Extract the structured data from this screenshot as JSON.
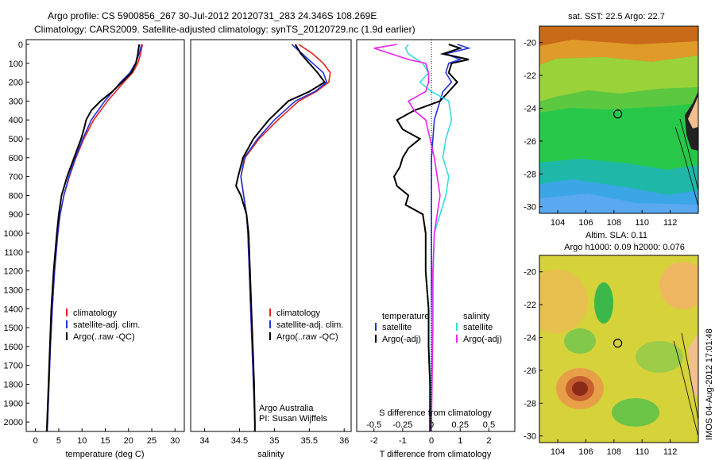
{
  "header": {
    "line1": "Argo profile: CS 5900856_267 30-Jul-2012 20120731_283 24.346S 108.269E",
    "line2": "Climatology: CARS2009. Satellite-adjusted climatology: synTS_20120729.nc (1.9d earlier)"
  },
  "side_stamp": "IMOS 04-Aug-2012 17:01:48",
  "colors": {
    "clim": "#e8221b",
    "sat": "#2233dd",
    "argo": "#000000",
    "sal_sat": "#33dddd",
    "sal_argo": "#ee22ee"
  },
  "chart_data": [
    {
      "type": "line",
      "id": "temperature",
      "xlabel": "temperature (deg C)",
      "xlim": [
        -2,
        32
      ],
      "ylim": [
        2050,
        0
      ],
      "xticks": [
        0,
        5,
        10,
        15,
        20,
        25,
        30
      ],
      "yticks": [
        0,
        100,
        200,
        300,
        400,
        500,
        600,
        700,
        800,
        900,
        1000,
        1100,
        1200,
        1300,
        1400,
        1500,
        1600,
        1700,
        1800,
        1900,
        2000
      ],
      "legend": [
        "climatology",
        "satellite-adj. clim.",
        "Argo(..raw -QC)"
      ],
      "series": [
        {
          "name": "climatology",
          "color": "clim",
          "depth": [
            0,
            50,
            100,
            150,
            200,
            300,
            400,
            500,
            600,
            700,
            800,
            900,
            1000,
            1200,
            1400,
            1600,
            1800,
            2000,
            2050
          ],
          "values": [
            23.0,
            22.6,
            22.0,
            20.9,
            19.0,
            15.5,
            12.5,
            10.4,
            8.7,
            7.3,
            6.1,
            5.3,
            4.8,
            4.1,
            3.6,
            3.2,
            2.9,
            2.6,
            2.5
          ]
        },
        {
          "name": "satellite-adj. clim.",
          "color": "sat",
          "depth": [
            0,
            50,
            100,
            150,
            200,
            300,
            400,
            500,
            600,
            700,
            800,
            900,
            1000,
            1200,
            1400,
            1600,
            1800,
            2000,
            2050
          ],
          "values": [
            22.8,
            22.3,
            21.5,
            20.3,
            18.3,
            14.9,
            12.0,
            10.2,
            8.6,
            7.2,
            6.1,
            5.3,
            4.8,
            4.1,
            3.6,
            3.2,
            2.9,
            2.6,
            2.5
          ]
        },
        {
          "name": "Argo(..raw -QC)",
          "color": "argo",
          "depth": [
            0,
            50,
            100,
            150,
            200,
            250,
            300,
            350,
            400,
            450,
            500,
            600,
            700,
            800,
            900,
            1000,
            1200,
            1400,
            1600,
            1800,
            2000,
            2050
          ],
          "values": [
            22.3,
            22.0,
            21.6,
            20.6,
            18.6,
            16.5,
            14.0,
            12.0,
            10.9,
            10.4,
            9.8,
            8.3,
            6.8,
            5.6,
            5.0,
            4.6,
            3.9,
            3.4,
            3.1,
            2.8,
            2.5,
            2.4
          ]
        }
      ]
    },
    {
      "type": "line",
      "id": "salinity",
      "xlabel": "salinity",
      "xlim": [
        33.8,
        36.1
      ],
      "ylim": [
        2050,
        0
      ],
      "xticks": [
        34,
        34.5,
        35,
        35.5,
        36
      ],
      "legend": [
        "climatology",
        "satellite-adj. clim.",
        "Argo(..raw -QC)"
      ],
      "annotation": [
        "Argo Australia",
        "PI: Susan Wijffels"
      ],
      "series": [
        {
          "name": "climatology",
          "color": "clim",
          "depth": [
            0,
            50,
            100,
            150,
            200,
            250,
            300,
            400,
            500,
            600,
            700,
            800,
            900,
            1000,
            1200,
            1400,
            1600,
            1800,
            2000,
            2050
          ],
          "values": [
            35.35,
            35.55,
            35.7,
            35.8,
            35.78,
            35.6,
            35.35,
            35.05,
            34.78,
            34.58,
            34.52,
            34.56,
            34.6,
            34.62,
            34.64,
            34.66,
            34.68,
            34.7,
            34.72,
            34.72
          ]
        },
        {
          "name": "satellite-adj. clim.",
          "color": "sat",
          "depth": [
            0,
            50,
            100,
            150,
            200,
            250,
            300,
            400,
            500,
            600,
            700,
            800,
            900,
            1000,
            1200,
            1400,
            1600,
            1800,
            2000,
            2050
          ],
          "values": [
            35.25,
            35.4,
            35.55,
            35.7,
            35.75,
            35.58,
            35.3,
            35.0,
            34.76,
            34.57,
            34.52,
            34.56,
            34.6,
            34.62,
            34.64,
            34.66,
            34.68,
            34.7,
            34.72,
            34.72
          ]
        },
        {
          "name": "Argo(..raw -QC)",
          "color": "argo",
          "depth": [
            0,
            50,
            100,
            150,
            200,
            250,
            300,
            400,
            500,
            600,
            700,
            750,
            800,
            900,
            1000,
            1200,
            1400,
            1600,
            1800,
            2000,
            2050
          ],
          "values": [
            35.3,
            35.38,
            35.5,
            35.62,
            35.72,
            35.5,
            35.2,
            34.92,
            34.7,
            34.55,
            34.48,
            34.45,
            34.52,
            34.6,
            34.63,
            34.65,
            34.67,
            34.69,
            34.71,
            34.72,
            34.72
          ]
        }
      ]
    },
    {
      "type": "line",
      "id": "difference",
      "xlabel": "T difference from climatology",
      "toplabel": "S difference from climatology",
      "xlim": [
        -2.6,
        2.9
      ],
      "ylim": [
        2050,
        0
      ],
      "xticks": [
        -2,
        -1,
        0,
        1,
        2
      ],
      "topticks": [
        "-0.5",
        "-0.25",
        "0",
        "0.25",
        "0.5"
      ],
      "topticks_pos": [
        -2,
        -1,
        0,
        1,
        2
      ],
      "legend_left": [
        "temperature",
        "satellite",
        "Argo(-adj)"
      ],
      "legend_right": [
        "salinity",
        "satellite",
        "Argo(-adj)"
      ],
      "series": [
        {
          "name": "temperature satellite",
          "color": "sat",
          "depth": [
            0,
            20,
            50,
            80,
            100,
            150,
            200,
            250,
            300,
            400,
            500,
            600,
            800,
            1000,
            1200,
            1500,
            2000,
            2050
          ],
          "values": [
            0.9,
            1.3,
            0.5,
            1.0,
            0.6,
            0.5,
            0.7,
            0.4,
            0.3,
            0.1,
            0.05,
            0.0,
            0.0,
            0.0,
            0.0,
            0.0,
            0.0,
            0.0
          ]
        },
        {
          "name": "temperature Argo(-adj)",
          "color": "argo",
          "depth": [
            0,
            20,
            50,
            80,
            100,
            150,
            200,
            250,
            300,
            350,
            400,
            450,
            500,
            550,
            600,
            650,
            700,
            750,
            800,
            850,
            900,
            1000,
            1100,
            1200,
            1300,
            1400,
            1600,
            1800,
            2000,
            2050
          ],
          "values": [
            0.6,
            1.0,
            0.4,
            1.3,
            0.7,
            0.6,
            0.9,
            0.6,
            0.3,
            -0.6,
            -1.2,
            -1.0,
            -0.4,
            -0.8,
            -1.0,
            -1.1,
            -1.3,
            -1.2,
            -0.8,
            -0.9,
            -0.3,
            -0.2,
            -0.2,
            -0.2,
            -0.15,
            -0.1,
            -0.1,
            -0.05,
            -0.05,
            -0.05
          ]
        },
        {
          "name": "salinity satellite",
          "color": "sal_sat",
          "depth": [
            0,
            20,
            50,
            100,
            150,
            200,
            250,
            300,
            400,
            500,
            600,
            700,
            800,
            1000,
            1500,
            2000,
            2050
          ],
          "values": [
            -0.8,
            -0.9,
            -0.8,
            -0.3,
            -0.1,
            -0.4,
            0.0,
            0.6,
            0.7,
            0.5,
            0.4,
            0.6,
            0.5,
            0.1,
            0.0,
            0.0,
            0.0
          ]
        },
        {
          "name": "salinity Argo(-adj)",
          "color": "sal_argo",
          "depth": [
            0,
            20,
            50,
            80,
            100,
            150,
            200,
            250,
            300,
            350,
            400,
            500,
            600,
            700,
            800,
            900,
            1000,
            1200,
            1500,
            2000,
            2050
          ],
          "values": [
            -1.2,
            -2.0,
            -1.4,
            -0.8,
            -0.2,
            -0.1,
            -0.1,
            -0.2,
            -0.8,
            -0.6,
            -0.2,
            -0.05,
            0.1,
            0.2,
            0.3,
            0.2,
            0.1,
            0.05,
            0.05,
            0.0,
            0.0
          ]
        }
      ]
    },
    {
      "type": "heatmap",
      "id": "sst_map",
      "title": "sat. SST: 22.5  Argo: 22.7",
      "xticks": [
        104,
        106,
        108,
        110,
        112
      ],
      "yticks": [
        -20,
        -22,
        -24,
        -26,
        -28,
        -30
      ],
      "marker": [
        108.27,
        -24.35
      ]
    },
    {
      "type": "heatmap",
      "id": "sla_map",
      "title1": "Altim. SLA: 0.11",
      "title2": "Argo h1000: 0.09 h2000: 0.076",
      "xticks": [
        104,
        106,
        108,
        110,
        112
      ],
      "yticks": [
        -20,
        -22,
        -24,
        -26,
        -28,
        -30
      ],
      "marker": [
        108.27,
        -24.35
      ]
    }
  ]
}
